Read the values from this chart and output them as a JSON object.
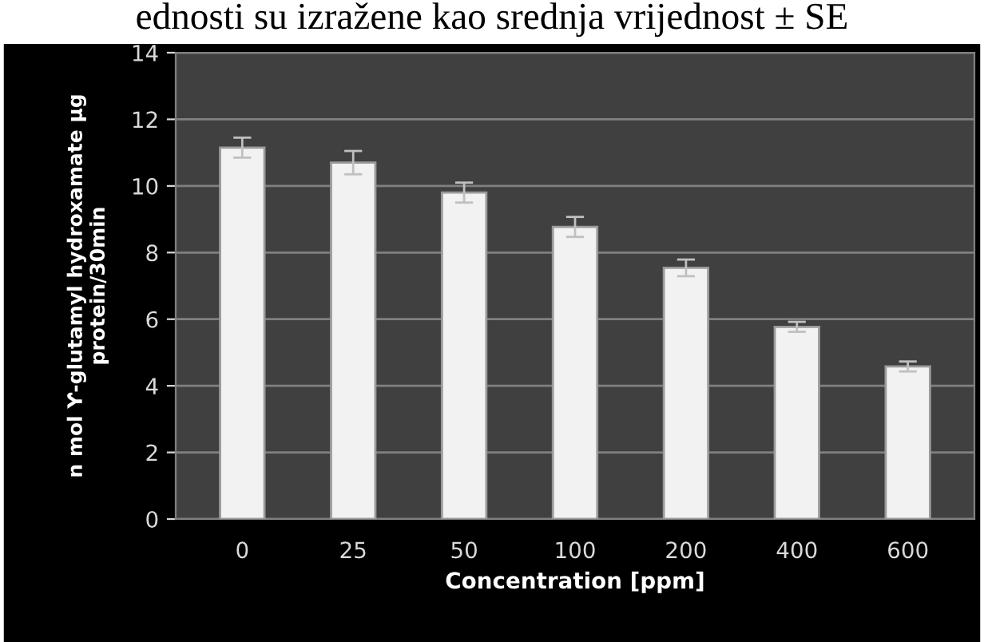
{
  "chart_data": {
    "type": "bar",
    "annotations": [
      "ednosti su izražene kao srednja vrijednost ± SE"
    ],
    "xlabel": "Concentration [ppm]",
    "ylabel": "n mol Ƴ-glutamyl hydroxamate µg\nprotein/30min",
    "categories": [
      "0",
      "25",
      "50",
      "100",
      "200",
      "400",
      "600"
    ],
    "values": [
      11.15,
      10.7,
      9.8,
      8.77,
      7.54,
      5.77,
      4.58
    ],
    "errors": [
      0.3,
      0.35,
      0.3,
      0.3,
      0.25,
      0.15,
      0.15
    ],
    "color": "#f2f2f2",
    "ylim": [
      0,
      14
    ],
    "yticks": [
      0,
      2,
      4,
      6,
      8,
      10,
      12,
      14
    ],
    "grid": "y",
    "legend": false
  }
}
